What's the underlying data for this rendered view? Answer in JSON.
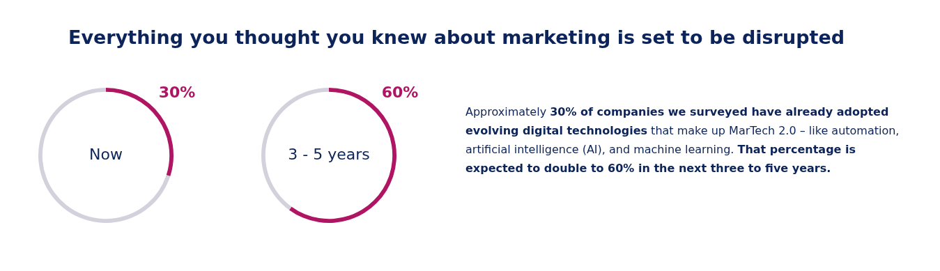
{
  "chart_data": [
    {
      "type": "donut",
      "categories": [
        null,
        null
      ],
      "values": [
        30,
        70
      ],
      "colors": [
        "#b01563",
        "#d3d1dc"
      ],
      "value_labels": [
        "30%",
        null
      ],
      "annotations": [
        "Now"
      ],
      "legend": false
    },
    {
      "type": "donut",
      "categories": [
        null,
        null
      ],
      "values": [
        60,
        40
      ],
      "colors": [
        "#b01563",
        "#d3d1dc"
      ],
      "value_labels": [
        "60%",
        null
      ],
      "annotations": [
        "3 - 5 years"
      ],
      "legend": false
    },
    {
      "type": "other",
      "title": "Everything you thought you knew about marketing is set to be disrupted",
      "annotations": [
        "Approximately ",
        "30% of companies we surveyed have already adopted evolving digital technologies",
        " that make up MarTech 2.0 – like automation, artificial intelligence (AI), and machine learning. ",
        "That percentage is expected to double to 60% in the next three to five years."
      ]
    }
  ]
}
